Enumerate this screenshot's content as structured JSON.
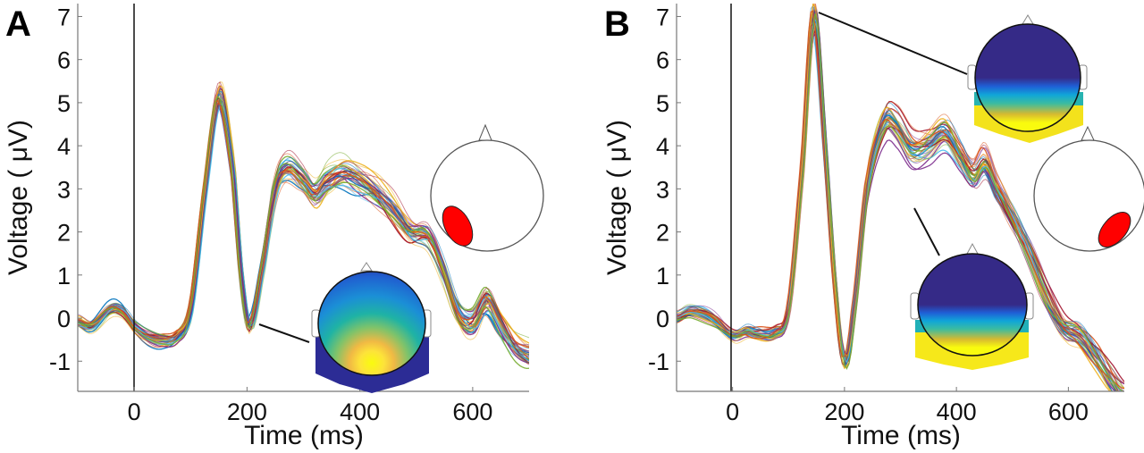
{
  "chart_data": [
    {
      "type": "line",
      "panel_label": "A",
      "xlabel": "Time (ms)",
      "ylabel": "Voltage ( μV)",
      "xlim": [
        -100,
        700
      ],
      "ylim": [
        -1.7,
        7.3
      ],
      "xticks": [
        "0",
        "200",
        "400",
        "600"
      ],
      "xtick_values": [
        0,
        200,
        400,
        600
      ],
      "yticks": [
        "-1",
        "0",
        "1",
        "2",
        "3",
        "4",
        "5",
        "6",
        "7"
      ],
      "ytick_values": [
        -1,
        0,
        1,
        2,
        3,
        4,
        5,
        6,
        7
      ],
      "stimulus_onset_ms": 0,
      "n_traces": 40,
      "mean_waveform": {
        "x": [
          -100,
          -75,
          -40,
          -20,
          0,
          25,
          50,
          75,
          100,
          125,
          150,
          175,
          190,
          205,
          225,
          250,
          270,
          300,
          320,
          340,
          370,
          400,
          430,
          460,
          490,
          520,
          545,
          575,
          600,
          625,
          650,
          675,
          700
        ],
        "y": [
          -0.1,
          -0.2,
          0.2,
          0.15,
          -0.2,
          -0.45,
          -0.55,
          -0.45,
          0.2,
          3.0,
          5.2,
          3.5,
          1.0,
          -0.2,
          1.0,
          3.0,
          3.5,
          3.2,
          2.9,
          3.2,
          3.4,
          3.2,
          2.9,
          2.5,
          2.0,
          1.9,
          1.2,
          0.1,
          -0.1,
          0.4,
          -0.2,
          -0.7,
          -0.9
        ]
      },
      "topomap_annotation_time_ms": 205,
      "electrode_region": "left-posterior"
    },
    {
      "type": "line",
      "panel_label": "B",
      "xlabel": "Time (ms)",
      "ylabel": "Voltage ( μV)",
      "xlim": [
        -100,
        700
      ],
      "ylim": [
        -1.7,
        7.3
      ],
      "xticks": [
        "0",
        "200",
        "400",
        "600"
      ],
      "xtick_values": [
        0,
        200,
        400,
        600
      ],
      "yticks": [
        "-1",
        "0",
        "1",
        "2",
        "3",
        "4",
        "5",
        "6",
        "7"
      ],
      "ytick_values": [
        -1,
        0,
        1,
        2,
        3,
        4,
        5,
        6,
        7
      ],
      "stimulus_onset_ms": 0,
      "n_traces": 40,
      "mean_waveform": {
        "x": [
          -100,
          -75,
          -40,
          0,
          25,
          40,
          75,
          100,
          125,
          145,
          165,
          185,
          200,
          215,
          240,
          270,
          290,
          320,
          350,
          380,
          410,
          430,
          450,
          470,
          500,
          530,
          560,
          590,
          620,
          650,
          680,
          700
        ],
        "y": [
          0.0,
          0.15,
          0.0,
          -0.4,
          -0.3,
          -0.35,
          -0.35,
          0.2,
          3.5,
          7.0,
          4.0,
          0.5,
          -1.0,
          0.0,
          3.0,
          4.5,
          4.5,
          3.9,
          4.0,
          4.3,
          3.7,
          3.3,
          3.6,
          3.0,
          2.3,
          1.5,
          0.5,
          -0.2,
          -0.4,
          -0.9,
          -1.5,
          -1.8
        ]
      },
      "topomap_annotation_times_ms": [
        145,
        310
      ],
      "electrode_region": "right-posterior"
    }
  ],
  "colors": {
    "traces": [
      "#0072bd",
      "#d95319",
      "#edb120",
      "#7e2f8e",
      "#77ac30",
      "#4dbeee",
      "#a2142f"
    ],
    "electrode_marker": "#ff0000",
    "topo_low": "#352a87",
    "topo_high": "#f9fb0e"
  }
}
